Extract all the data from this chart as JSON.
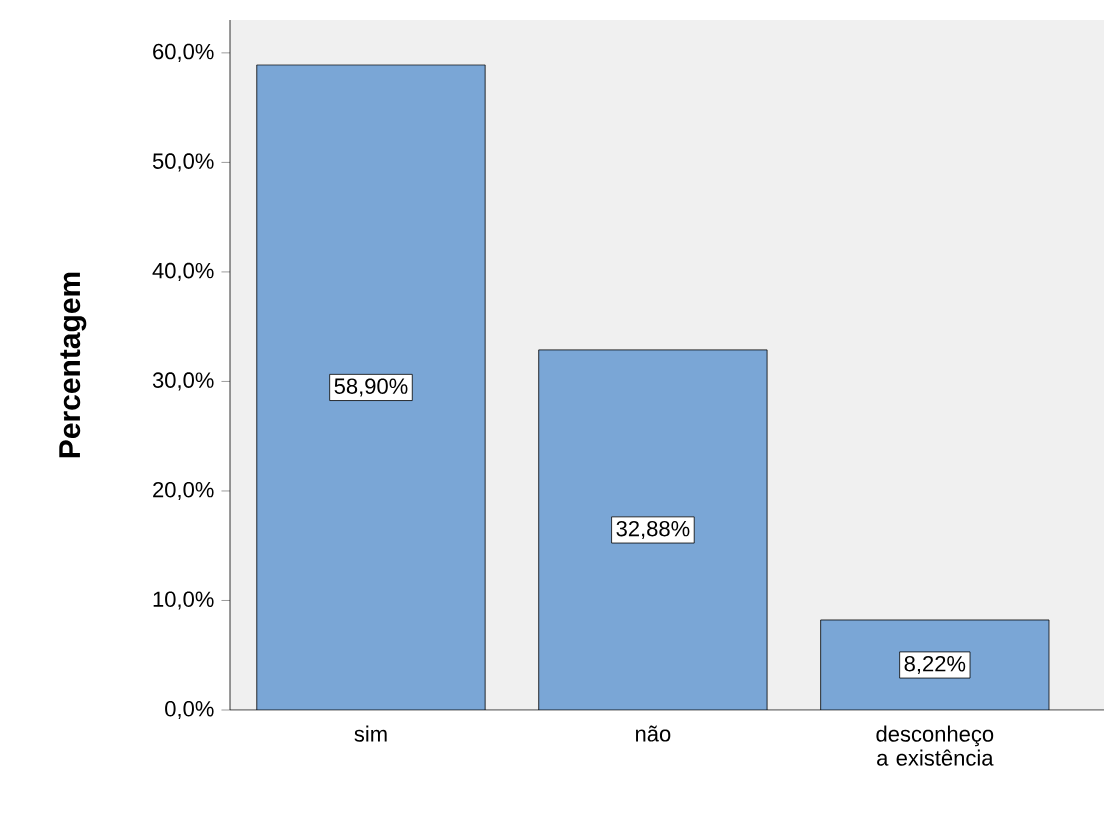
{
  "chart_data": {
    "type": "bar",
    "ylabel": "Percentagem",
    "categories": [
      "sim",
      "não",
      "desconheço a existência"
    ],
    "values": [
      58.9,
      32.88,
      8.22
    ],
    "value_labels": [
      "58,90%",
      "32,88%",
      "8,22%"
    ],
    "color": "#7aa6d6",
    "ylim": [
      0,
      63
    ],
    "yticks": [
      {
        "value": 0,
        "label": "0,0%"
      },
      {
        "value": 10,
        "label": "10,0%"
      },
      {
        "value": 20,
        "label": "20,0%"
      },
      {
        "value": 30,
        "label": "30,0%"
      },
      {
        "value": 40,
        "label": "40,0%"
      },
      {
        "value": 50,
        "label": "50,0%"
      },
      {
        "value": 60,
        "label": "60,0%"
      }
    ],
    "grid": false
  }
}
